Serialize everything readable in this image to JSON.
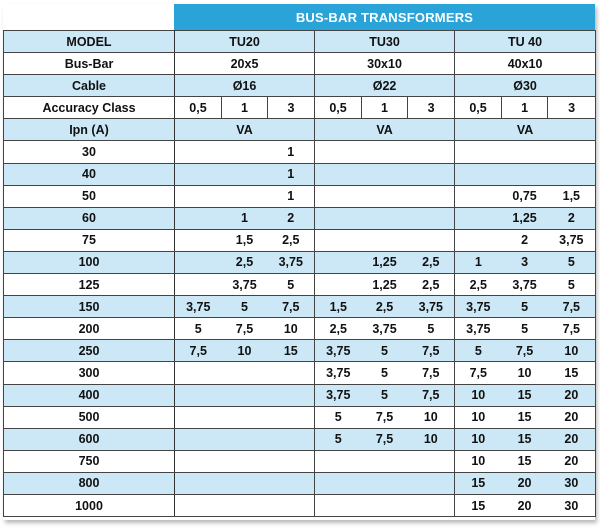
{
  "title": "BUS-BAR TRANSFORMERS",
  "labels": {
    "model": "MODEL",
    "busbar": "Bus-Bar",
    "cable": "Cable",
    "accuracy": "Accuracy Class",
    "ipn": "Ipn (A)"
  },
  "models": [
    {
      "name": "TU20",
      "busbar": "20x5",
      "cable": "Ø16",
      "unit": "VA"
    },
    {
      "name": "TU30",
      "busbar": "30x10",
      "cable": "Ø22",
      "unit": "VA"
    },
    {
      "name": "TU 40",
      "busbar": "40x10",
      "cable": "Ø30",
      "unit": "VA"
    }
  ],
  "accuracy_classes": [
    "0,5",
    "1",
    "3",
    "0,5",
    "1",
    "3",
    "0,5",
    "1",
    "3"
  ],
  "rows": [
    {
      "ipn": "30",
      "values": [
        "",
        "",
        "1",
        "",
        "",
        "",
        "",
        "",
        ""
      ]
    },
    {
      "ipn": "40",
      "values": [
        "",
        "",
        "1",
        "",
        "",
        "",
        "",
        "",
        ""
      ]
    },
    {
      "ipn": "50",
      "values": [
        "",
        "",
        "1",
        "",
        "",
        "",
        "",
        "0,75",
        "1,5"
      ]
    },
    {
      "ipn": "60",
      "values": [
        "",
        "1",
        "2",
        "",
        "",
        "",
        "",
        "1,25",
        "2"
      ]
    },
    {
      "ipn": "75",
      "values": [
        "",
        "1,5",
        "2,5",
        "",
        "",
        "",
        "",
        "2",
        "3,75"
      ]
    },
    {
      "ipn": "100",
      "values": [
        "",
        "2,5",
        "3,75",
        "",
        "1,25",
        "2,5",
        "1",
        "3",
        "5"
      ]
    },
    {
      "ipn": "125",
      "values": [
        "",
        "3,75",
        "5",
        "",
        "1,25",
        "2,5",
        "2,5",
        "3,75",
        "5"
      ]
    },
    {
      "ipn": "150",
      "values": [
        "3,75",
        "5",
        "7,5",
        "1,5",
        "2,5",
        "3,75",
        "3,75",
        "5",
        "7,5"
      ]
    },
    {
      "ipn": "200",
      "values": [
        "5",
        "7,5",
        "10",
        "2,5",
        "3,75",
        "5",
        "3,75",
        "5",
        "7,5"
      ]
    },
    {
      "ipn": "250",
      "values": [
        "7,5",
        "10",
        "15",
        "3,75",
        "5",
        "7,5",
        "5",
        "7,5",
        "10"
      ]
    },
    {
      "ipn": "300",
      "values": [
        "",
        "",
        "",
        "3,75",
        "5",
        "7,5",
        "7,5",
        "10",
        "15"
      ]
    },
    {
      "ipn": "400",
      "values": [
        "",
        "",
        "",
        "3,75",
        "5",
        "7,5",
        "10",
        "15",
        "20"
      ]
    },
    {
      "ipn": "500",
      "values": [
        "",
        "",
        "",
        "5",
        "7,5",
        "10",
        "10",
        "15",
        "20"
      ]
    },
    {
      "ipn": "600",
      "values": [
        "",
        "",
        "",
        "5",
        "7,5",
        "10",
        "10",
        "15",
        "20"
      ]
    },
    {
      "ipn": "750",
      "values": [
        "",
        "",
        "",
        "",
        "",
        "",
        "10",
        "15",
        "20"
      ]
    },
    {
      "ipn": "800",
      "values": [
        "",
        "",
        "",
        "",
        "",
        "",
        "15",
        "20",
        "30"
      ]
    },
    {
      "ipn": "1000",
      "values": [
        "",
        "",
        "",
        "",
        "",
        "",
        "15",
        "20",
        "30"
      ]
    }
  ],
  "colors": {
    "header_bg": "#2aa3d9",
    "shade": "#cce8f6",
    "text": "#111111"
  }
}
